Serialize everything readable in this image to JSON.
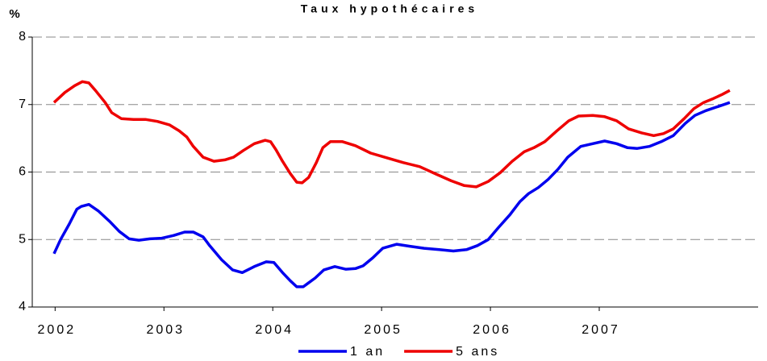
{
  "chart_data": {
    "type": "line",
    "title": "Taux hypothécaires",
    "y_label": "%",
    "xlim": [
      2001.79,
      2008.46
    ],
    "xticks": [
      2002,
      2003,
      2004,
      2005,
      2006,
      2007
    ],
    "ylim": [
      4,
      8
    ],
    "yticks": [
      4,
      5,
      6,
      7,
      8
    ],
    "grid": true,
    "legend": "bottom",
    "series": [
      {
        "name": "1 an",
        "color": "#0000ee",
        "x": [
          2001.99,
          2002.05,
          2002.13,
          2002.2,
          2002.24,
          2002.31,
          2002.4,
          2002.5,
          2002.59,
          2002.68,
          2002.77,
          2002.87,
          2002.98,
          2003.09,
          2003.19,
          2003.27,
          2003.36,
          2003.42,
          2003.53,
          2003.63,
          2003.72,
          2003.83,
          2003.94,
          2004.01,
          2004.09,
          2004.16,
          2004.22,
          2004.28,
          2004.39,
          2004.47,
          2004.57,
          2004.67,
          2004.76,
          2004.83,
          2004.92,
          2005.01,
          2005.14,
          2005.26,
          2005.39,
          2005.53,
          2005.66,
          2005.78,
          2005.88,
          2005.98,
          2006.07,
          2006.18,
          2006.27,
          2006.35,
          2006.44,
          2006.53,
          2006.62,
          2006.71,
          2006.83,
          2006.94,
          2007.05,
          2007.16,
          2007.26,
          2007.35,
          2007.46,
          2007.57,
          2007.68,
          2007.79,
          2007.88,
          2007.98,
          2008.09,
          2008.2
        ],
        "values": [
          4.79,
          5.0,
          5.23,
          5.45,
          5.49,
          5.52,
          5.42,
          5.27,
          5.12,
          5.01,
          4.99,
          5.01,
          5.02,
          5.06,
          5.11,
          5.11,
          5.04,
          4.91,
          4.7,
          4.55,
          4.51,
          4.6,
          4.67,
          4.66,
          4.51,
          4.39,
          4.3,
          4.3,
          4.43,
          4.55,
          4.6,
          4.56,
          4.57,
          4.61,
          4.73,
          4.87,
          4.93,
          4.9,
          4.87,
          4.85,
          4.83,
          4.85,
          4.91,
          5.0,
          5.17,
          5.37,
          5.56,
          5.68,
          5.77,
          5.89,
          6.04,
          6.22,
          6.38,
          6.42,
          6.46,
          6.42,
          6.36,
          6.35,
          6.38,
          6.45,
          6.54,
          6.72,
          6.84,
          6.91,
          6.97,
          7.03
        ]
      },
      {
        "name": "5 ans",
        "color": "#ee0000",
        "x": [
          2001.99,
          2002.09,
          2002.18,
          2002.25,
          2002.31,
          2002.37,
          2002.46,
          2002.52,
          2002.61,
          2002.72,
          2002.83,
          2002.94,
          2003.05,
          2003.14,
          2003.21,
          2003.27,
          2003.36,
          2003.46,
          2003.56,
          2003.64,
          2003.73,
          2003.83,
          2003.93,
          2003.98,
          2004.03,
          2004.09,
          2004.16,
          2004.22,
          2004.27,
          2004.33,
          2004.4,
          2004.46,
          2004.53,
          2004.64,
          2004.76,
          2004.9,
          2005.05,
          2005.2,
          2005.35,
          2005.5,
          2005.64,
          2005.76,
          2005.87,
          2005.98,
          2006.09,
          2006.2,
          2006.31,
          2006.4,
          2006.5,
          2006.61,
          2006.72,
          2006.81,
          2006.94,
          2007.05,
          2007.16,
          2007.27,
          2007.39,
          2007.5,
          2007.59,
          2007.68,
          2007.78,
          2007.87,
          2007.96,
          2008.05,
          2008.13,
          2008.2
        ],
        "values": [
          7.03,
          7.18,
          7.28,
          7.34,
          7.32,
          7.21,
          7.03,
          6.88,
          6.79,
          6.78,
          6.78,
          6.75,
          6.7,
          6.61,
          6.52,
          6.38,
          6.22,
          6.16,
          6.18,
          6.22,
          6.32,
          6.42,
          6.47,
          6.45,
          6.33,
          6.16,
          5.98,
          5.85,
          5.84,
          5.92,
          6.14,
          6.36,
          6.45,
          6.45,
          6.39,
          6.28,
          6.21,
          6.14,
          6.08,
          5.97,
          5.87,
          5.8,
          5.78,
          5.86,
          5.99,
          6.16,
          6.3,
          6.36,
          6.45,
          6.61,
          6.76,
          6.83,
          6.84,
          6.82,
          6.76,
          6.64,
          6.58,
          6.54,
          6.57,
          6.64,
          6.79,
          6.94,
          7.03,
          7.09,
          7.15,
          7.21
        ]
      }
    ]
  }
}
